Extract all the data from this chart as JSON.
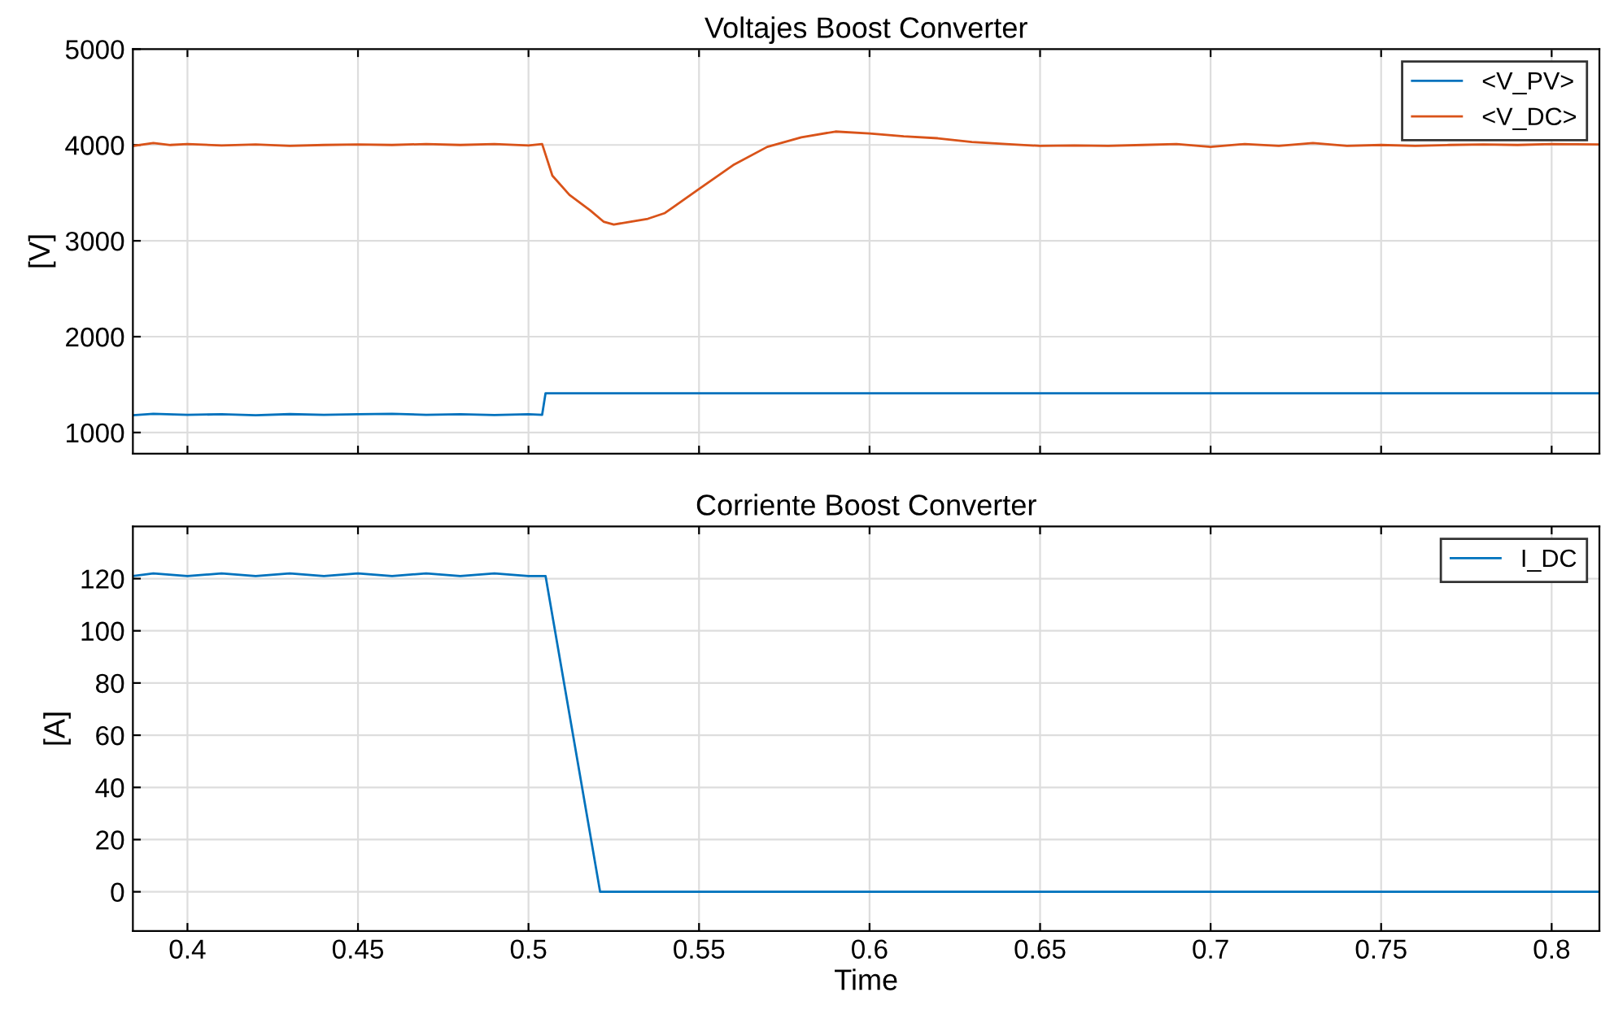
{
  "chart_data": [
    {
      "type": "line",
      "title": "Voltajes Boost Converter",
      "ylabel": "[V]",
      "xlim": [
        0.384,
        0.814
      ],
      "xticks": [
        0.4,
        0.45,
        0.5,
        0.55,
        0.6,
        0.65,
        0.7,
        0.75,
        0.8
      ],
      "ylim": [
        780,
        5000
      ],
      "yticks": [
        1000,
        2000,
        3000,
        4000,
        5000
      ],
      "grid": true,
      "legend": "top right",
      "tick_labels": "y",
      "series": [
        {
          "name": "<V_PV>",
          "color": "#0072bd",
          "x": [
            0.384,
            0.39,
            0.4,
            0.41,
            0.42,
            0.43,
            0.44,
            0.45,
            0.46,
            0.47,
            0.48,
            0.49,
            0.5,
            0.504,
            0.505,
            0.6,
            0.7,
            0.814
          ],
          "values": [
            1180,
            1195,
            1185,
            1190,
            1180,
            1192,
            1185,
            1190,
            1195,
            1185,
            1190,
            1182,
            1190,
            1185,
            1410,
            1410,
            1410,
            1410
          ]
        },
        {
          "name": "<V_DC>",
          "color": "#d95319",
          "x": [
            0.384,
            0.39,
            0.395,
            0.4,
            0.41,
            0.42,
            0.43,
            0.44,
            0.45,
            0.46,
            0.47,
            0.48,
            0.49,
            0.5,
            0.504,
            0.507,
            0.512,
            0.518,
            0.522,
            0.525,
            0.53,
            0.535,
            0.54,
            0.55,
            0.56,
            0.57,
            0.58,
            0.59,
            0.6,
            0.61,
            0.62,
            0.63,
            0.64,
            0.65,
            0.66,
            0.67,
            0.68,
            0.69,
            0.7,
            0.71,
            0.72,
            0.73,
            0.74,
            0.75,
            0.76,
            0.77,
            0.78,
            0.79,
            0.8,
            0.814
          ],
          "values": [
            3990,
            4020,
            4000,
            4010,
            3995,
            4005,
            3990,
            4000,
            4005,
            4000,
            4010,
            4000,
            4010,
            3995,
            4010,
            3680,
            3480,
            3320,
            3200,
            3170,
            3200,
            3230,
            3290,
            3540,
            3790,
            3980,
            4080,
            4140,
            4120,
            4090,
            4070,
            4030,
            4010,
            3990,
            3995,
            3990,
            4000,
            4010,
            3980,
            4010,
            3990,
            4020,
            3990,
            4000,
            3990,
            4000,
            4005,
            4000,
            4010,
            4005
          ]
        }
      ]
    },
    {
      "type": "line",
      "title": "Corriente Boost Converter",
      "xlabel": "Time",
      "ylabel": "[A]",
      "xlim": [
        0.384,
        0.814
      ],
      "xticks": [
        0.4,
        0.45,
        0.5,
        0.55,
        0.6,
        0.65,
        0.7,
        0.75,
        0.8
      ],
      "ylim": [
        -15,
        140
      ],
      "yticks": [
        0,
        20,
        40,
        60,
        80,
        100,
        120
      ],
      "grid": true,
      "legend": "top right",
      "series": [
        {
          "name": "I_DC",
          "color": "#0072bd",
          "x": [
            0.384,
            0.39,
            0.4,
            0.41,
            0.42,
            0.43,
            0.44,
            0.45,
            0.46,
            0.47,
            0.48,
            0.49,
            0.5,
            0.505,
            0.521,
            0.6,
            0.7,
            0.814
          ],
          "values": [
            121,
            122,
            121,
            122,
            121,
            122,
            121,
            122,
            121,
            122,
            121,
            122,
            121,
            121,
            0,
            0,
            0,
            0
          ]
        }
      ]
    }
  ]
}
